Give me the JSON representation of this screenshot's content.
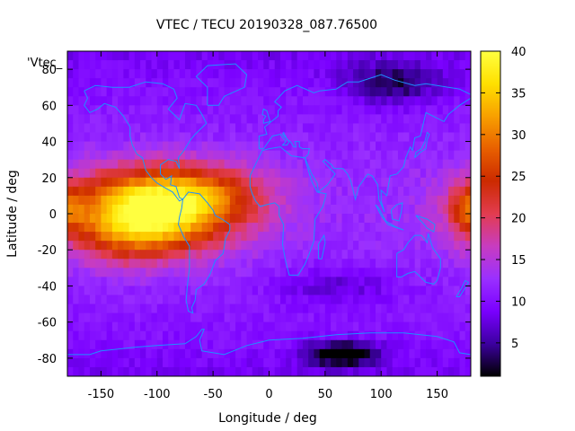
{
  "chart_data": {
    "type": "heatmap",
    "title": "VTEC / TECU 20190328_087.76500",
    "xlabel": "Longitude / deg",
    "ylabel": "Latitude / deg",
    "xlim": [
      -180,
      180
    ],
    "ylim": [
      -90,
      90
    ],
    "xticks": [
      -150,
      -100,
      -50,
      0,
      50,
      100,
      150
    ],
    "yticks": [
      -80,
      -60,
      -40,
      -20,
      0,
      20,
      40,
      60,
      80
    ],
    "colorbar": {
      "min": 1,
      "max": 40,
      "ticks": [
        5,
        10,
        15,
        20,
        25,
        30,
        35,
        40
      ],
      "palette": [
        "#000000",
        "#3c00a0",
        "#7a00ff",
        "#9a30ff",
        "#c83cc0",
        "#e23c50",
        "#cc2a00",
        "#e86000",
        "#f8a000",
        "#ffe000",
        "#ffff40"
      ]
    },
    "legend_text": "'Vtec_",
    "coastline_color": "#1e90ff",
    "grid": false,
    "features": {
      "background_vtec": 12,
      "equatorial_anomaly": [
        {
          "lon": -100,
          "lat": 3,
          "amplitude": 27,
          "lon_width": 52,
          "lat_width": 15
        },
        {
          "lon": -125,
          "lat": -12,
          "amplitude": 8,
          "lon_width": 35,
          "lat_width": 12
        },
        {
          "lon": -60,
          "lat": 12,
          "amplitude": 6,
          "lon_width": 45,
          "lat_width": 10
        },
        {
          "lon": 178,
          "lat": 3,
          "amplitude": 9,
          "lon_width": 12,
          "lat_width": 9
        }
      ],
      "depletions": [
        {
          "lon": 65,
          "lat": -78,
          "amplitude": -11,
          "lon_width": 22,
          "lat_width": 5
        },
        {
          "lon": 110,
          "lat": 72,
          "amplitude": -7,
          "lon_width": 30,
          "lat_width": 8
        },
        {
          "lon": 60,
          "lat": -40,
          "amplitude": -4,
          "lon_width": 40,
          "lat_width": 8
        }
      ]
    }
  }
}
